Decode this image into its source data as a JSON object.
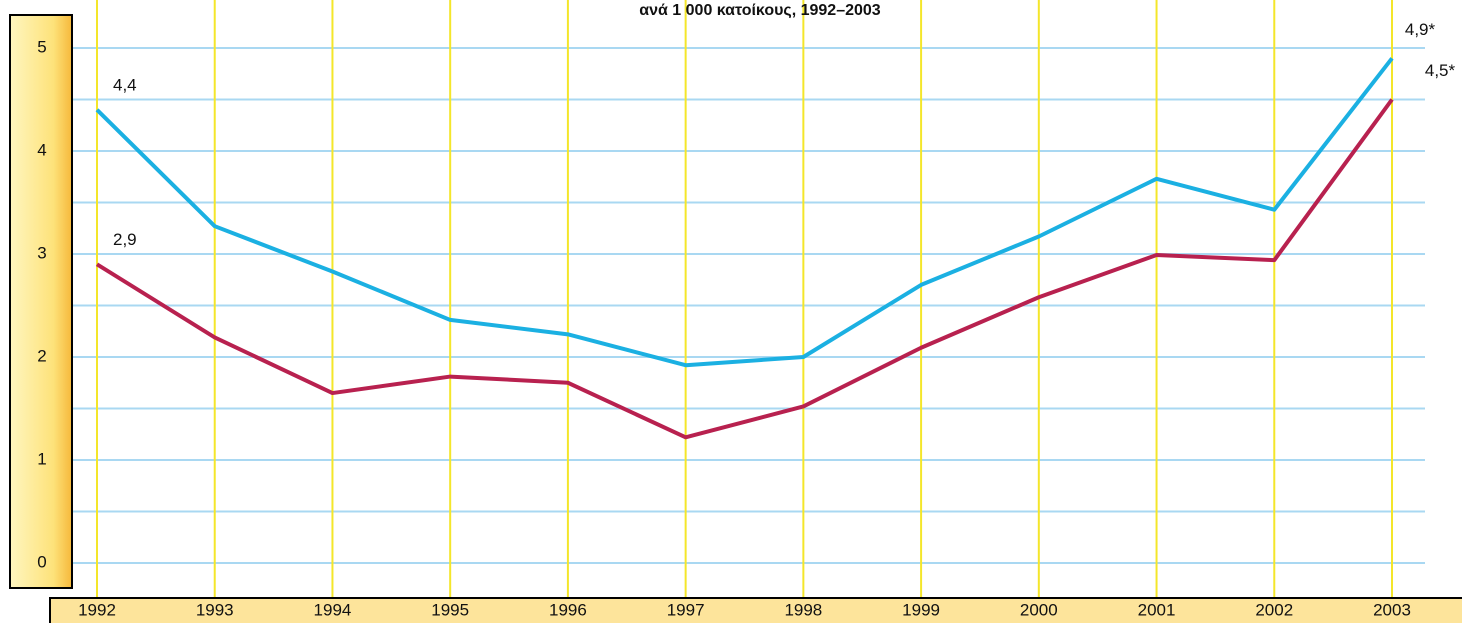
{
  "chart_data": {
    "type": "line",
    "title": "ανά 1 000 κατοίκους, 1992–2003",
    "categories": [
      "1992",
      "1993",
      "1994",
      "1995",
      "1996",
      "1997",
      "1998",
      "1999",
      "2000",
      "2001",
      "2002",
      "2003"
    ],
    "series": [
      {
        "color": "#1bb0e2",
        "values": [
          4.4,
          3.27,
          2.83,
          2.36,
          2.22,
          1.92,
          2.0,
          2.7,
          3.17,
          3.73,
          3.43,
          4.9
        ],
        "value_labels": [
          "4,4",
          null,
          null,
          null,
          null,
          null,
          null,
          null,
          null,
          null,
          null,
          "4,9*"
        ]
      },
      {
        "color": "#b8214f",
        "values": [
          2.9,
          2.19,
          1.65,
          1.81,
          1.75,
          1.22,
          1.52,
          2.09,
          2.58,
          2.99,
          2.94,
          4.5
        ],
        "value_labels": [
          "2,9",
          null,
          null,
          null,
          null,
          null,
          null,
          null,
          null,
          null,
          null,
          "4,5*"
        ]
      }
    ],
    "ylim": [
      0,
      5
    ],
    "yticks": [
      0,
      1,
      2,
      3,
      4,
      5
    ],
    "grid": true
  }
}
